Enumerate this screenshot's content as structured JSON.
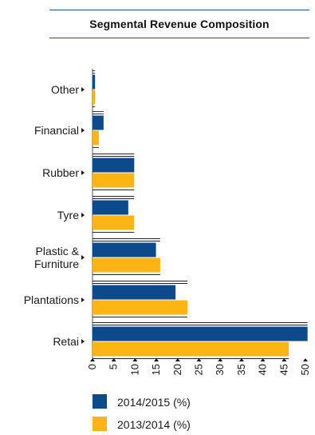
{
  "chart_data": {
    "type": "bar",
    "orientation": "horizontal",
    "title": "Segmental Revenue Composition",
    "categories": [
      "Other",
      "Financial",
      "Rubber",
      "Tyre",
      "Plastic & Furniture",
      "Plantations",
      "Retai"
    ],
    "category_lines": [
      [
        "Other"
      ],
      [
        "Financial"
      ],
      [
        "Rubber"
      ],
      [
        "Tyre"
      ],
      [
        "Plastic &",
        "Furniture"
      ],
      [
        "Plantations"
      ],
      [
        "Retai"
      ]
    ],
    "series": [
      {
        "name": "2014/2015 (%)",
        "color": "#0d4a8b",
        "values": [
          0.6,
          2.6,
          9.8,
          8.4,
          14.9,
          19.5,
          50.5
        ]
      },
      {
        "name": "2013/2014 (%)",
        "color": "#fdb515",
        "values": [
          0.6,
          1.5,
          9.8,
          9.8,
          15.9,
          22.3,
          46.1
        ]
      }
    ],
    "xlim": [
      0,
      50
    ],
    "xticks": [
      "0",
      "5",
      "10",
      "15",
      "20",
      "25",
      "30",
      "35",
      "40",
      "45",
      "50"
    ],
    "grid": false,
    "legend_position": "bottom"
  }
}
